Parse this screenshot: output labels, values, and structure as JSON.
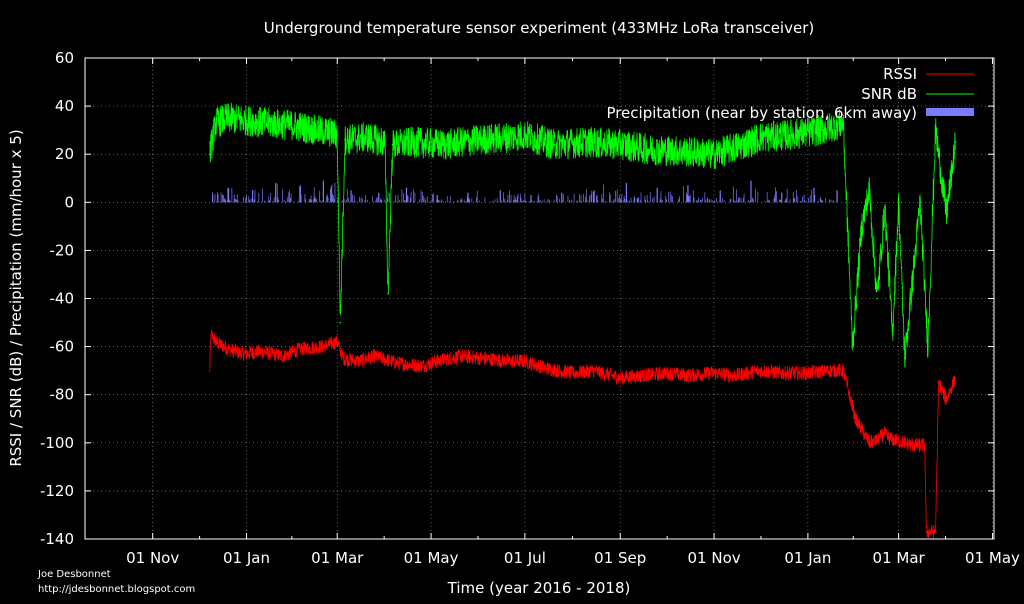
{
  "colors": {
    "background": "#000000",
    "axis": "#ffffff",
    "grid": "#a0a0a0",
    "rssi": "#ff0000",
    "snr": "#00ff00",
    "precipitation": "#7b7bff"
  },
  "credits": {
    "author": "Joe Desbonnet",
    "url": "http://jdesbonnet.blogspot.com"
  },
  "chart_data": {
    "type": "line",
    "title": "Underground temperature sensor experiment (433MHz LoRa transceiver)",
    "xlabel": "Time (year 2016 - 2018)",
    "ylabel": "RSSI / SNR (dB) / Precipitation (mm/hour x 5)",
    "x_tick_labels": [
      "01 Nov",
      "01 Jan",
      "01 Mar",
      "01 May",
      "01 Jul",
      "01 Sep",
      "01 Nov",
      "01 Jan",
      "01 Mar",
      "01 May"
    ],
    "x_tick_dates": [
      "2016-11-01",
      "2017-01-01",
      "2017-03-01",
      "2017-05-01",
      "2017-07-01",
      "2017-09-01",
      "2017-11-01",
      "2018-01-01",
      "2018-03-01",
      "2018-05-01"
    ],
    "xlim": [
      "2016-09-18",
      "2018-05-02"
    ],
    "ylim": [
      -140,
      60
    ],
    "y_ticks": [
      60,
      40,
      20,
      0,
      -20,
      -40,
      -60,
      -80,
      -100,
      -120,
      -140
    ],
    "grid": true,
    "legend_position": "top-right",
    "series": [
      {
        "name": "RSSI",
        "style": "line",
        "color": "#ff0000",
        "x": [
          "2016-12-08",
          "2016-12-09",
          "2016-12-12",
          "2016-12-20",
          "2016-12-30",
          "2017-01-10",
          "2017-01-25",
          "2017-02-05",
          "2017-02-20",
          "2017-03-01",
          "2017-03-05",
          "2017-03-15",
          "2017-03-25",
          "2017-04-10",
          "2017-04-25",
          "2017-05-05",
          "2017-05-20",
          "2017-06-05",
          "2017-06-20",
          "2017-07-01",
          "2017-07-15",
          "2017-08-01",
          "2017-08-15",
          "2017-09-01",
          "2017-09-15",
          "2017-10-01",
          "2017-10-15",
          "2017-11-01",
          "2017-11-15",
          "2017-12-01",
          "2017-12-15",
          "2018-01-01",
          "2018-01-15",
          "2018-01-20",
          "2018-01-24",
          "2018-02-01",
          "2018-02-10",
          "2018-02-15",
          "2018-02-20",
          "2018-02-22",
          "2018-03-10",
          "2018-03-18",
          "2018-03-19",
          "2018-03-20",
          "2018-03-25",
          "2018-03-27",
          "2018-04-01",
          "2018-04-07"
        ],
        "y": [
          -70,
          -55,
          -58,
          -61,
          -63,
          -62,
          -64,
          -61,
          -60,
          -58,
          -65,
          -66,
          -64,
          -67,
          -68,
          -66,
          -64,
          -65,
          -66,
          -66,
          -69,
          -71,
          -70,
          -73,
          -72,
          -71,
          -72,
          -71,
          -72,
          -70,
          -71,
          -71,
          -70,
          -70,
          -70,
          -90,
          -100,
          -99,
          -96,
          -98,
          -101,
          -101,
          -137,
          -137,
          -137,
          -75,
          -82,
          -73
        ]
      },
      {
        "name": "SNR dB",
        "style": "line",
        "color": "#00ff00",
        "x": [
          "2016-12-08",
          "2016-12-12",
          "2016-12-20",
          "2017-01-01",
          "2017-01-15",
          "2017-02-01",
          "2017-02-15",
          "2017-02-25",
          "2017-03-01",
          "2017-03-03",
          "2017-03-06",
          "2017-03-20",
          "2017-04-01",
          "2017-04-03",
          "2017-04-06",
          "2017-04-20",
          "2017-05-10",
          "2017-06-01",
          "2017-06-20",
          "2017-07-01",
          "2017-07-20",
          "2017-08-10",
          "2017-09-01",
          "2017-09-20",
          "2017-10-15",
          "2017-11-01",
          "2017-11-20",
          "2017-12-01",
          "2017-12-20",
          "2018-01-10",
          "2018-01-24",
          "2018-01-30",
          "2018-02-05",
          "2018-02-10",
          "2018-02-15",
          "2018-02-20",
          "2018-02-25",
          "2018-03-01",
          "2018-03-05",
          "2018-03-15",
          "2018-03-20",
          "2018-03-25",
          "2018-04-01",
          "2018-04-07"
        ],
        "y": [
          20,
          33,
          35,
          34,
          33,
          32,
          30,
          29,
          28,
          -50,
          26,
          27,
          25,
          -38,
          24,
          25,
          24,
          26,
          27,
          28,
          24,
          25,
          24,
          22,
          21,
          20,
          24,
          27,
          28,
          30,
          33,
          -60,
          -10,
          5,
          -40,
          -2,
          -55,
          0,
          -65,
          0,
          -60,
          30,
          -5,
          25
        ]
      },
      {
        "name": "Precipitation (near by station, 6km away)",
        "style": "bar",
        "color": "#7b7bff",
        "x": [
          "2016-12-10",
          "2016-12-20",
          "2017-01-05",
          "2017-01-20",
          "2017-02-05",
          "2017-02-20",
          "2017-03-10",
          "2017-03-28",
          "2017-04-15",
          "2017-05-05",
          "2017-05-25",
          "2017-06-15",
          "2017-07-05",
          "2017-07-25",
          "2017-08-15",
          "2017-09-05",
          "2017-09-25",
          "2017-10-15",
          "2017-11-05",
          "2017-11-25",
          "2017-12-15",
          "2018-01-05",
          "2018-01-20"
        ],
        "y": [
          3,
          6,
          5,
          8,
          7,
          9,
          5,
          4,
          6,
          3,
          4,
          5,
          3,
          4,
          5,
          8,
          6,
          7,
          5,
          9,
          4,
          6,
          5
        ]
      }
    ]
  }
}
